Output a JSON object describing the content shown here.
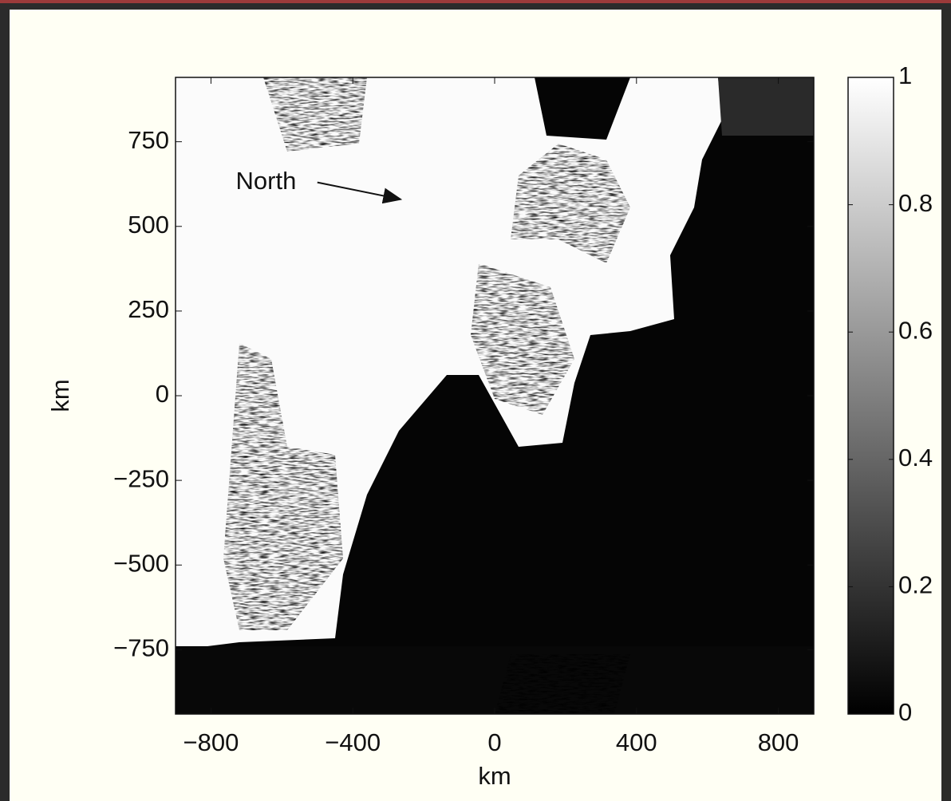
{
  "chart_data": {
    "type": "image",
    "xlabel": "km",
    "ylabel": "km",
    "xlim": [
      -900,
      900
    ],
    "ylim": [
      -940,
      940
    ],
    "xticks": [
      {
        "value": -800,
        "label": "−800"
      },
      {
        "value": -400,
        "label": "−400"
      },
      0,
      400,
      800
    ],
    "yticks": [
      {
        "value": -750,
        "label": "−750"
      },
      {
        "value": -500,
        "label": "−500"
      },
      {
        "value": -250,
        "label": "−250"
      },
      0,
      250,
      500,
      750
    ],
    "clim": [
      0,
      1
    ],
    "cticks": [
      0,
      0.2,
      0.4,
      0.6,
      0.8,
      1
    ],
    "colormap": [
      "#000000",
      "#ffffff"
    ],
    "annotations": [
      {
        "text": "North",
        "x": -730,
        "y": 630,
        "arrow_from": [
          -500,
          630
        ],
        "arrow_to": [
          -265,
          580
        ]
      }
    ]
  }
}
